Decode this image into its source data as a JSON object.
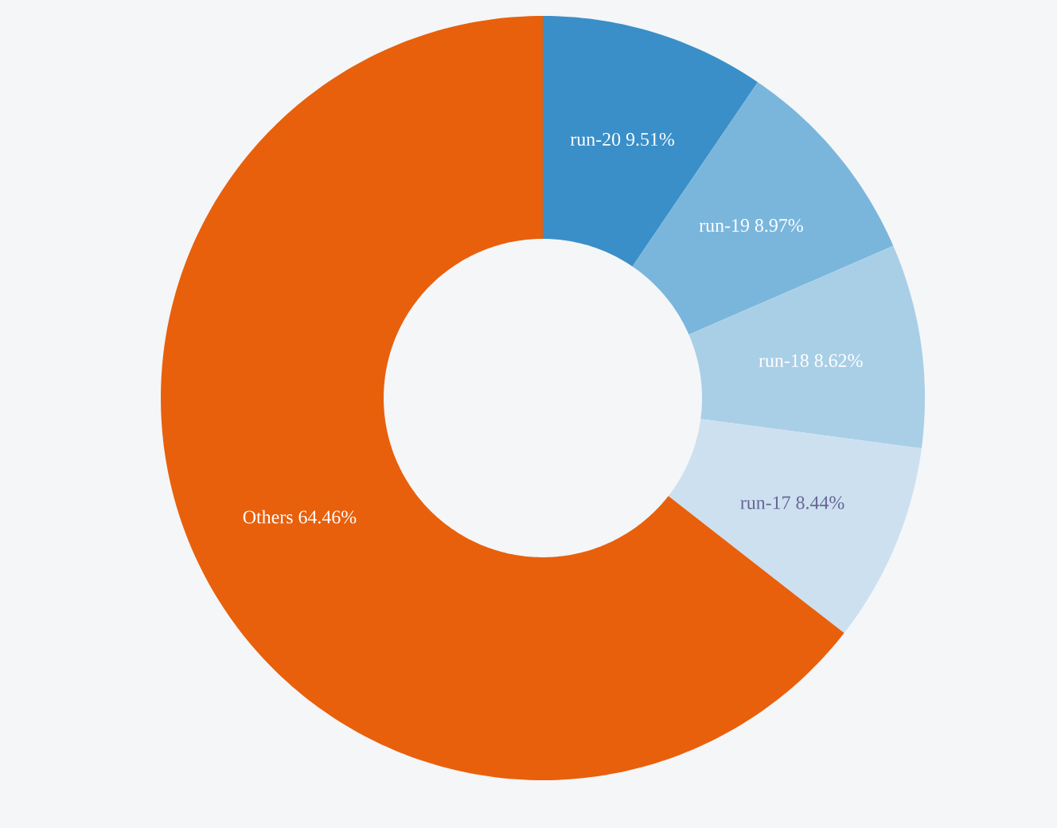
{
  "chart_data": {
    "type": "donut",
    "categories": [
      "run-20",
      "run-19",
      "run-18",
      "run-17",
      "Others"
    ],
    "values": [
      9.51,
      8.97,
      8.62,
      8.44,
      64.46
    ],
    "value_labels": [
      "9.51%",
      "8.97%",
      "8.62%",
      "8.44%",
      "64.46%"
    ],
    "colors": [
      "#3a8fc8",
      "#7ab6dc",
      "#a9cfe7",
      "#cde0f0",
      "#e8600c"
    ]
  }
}
